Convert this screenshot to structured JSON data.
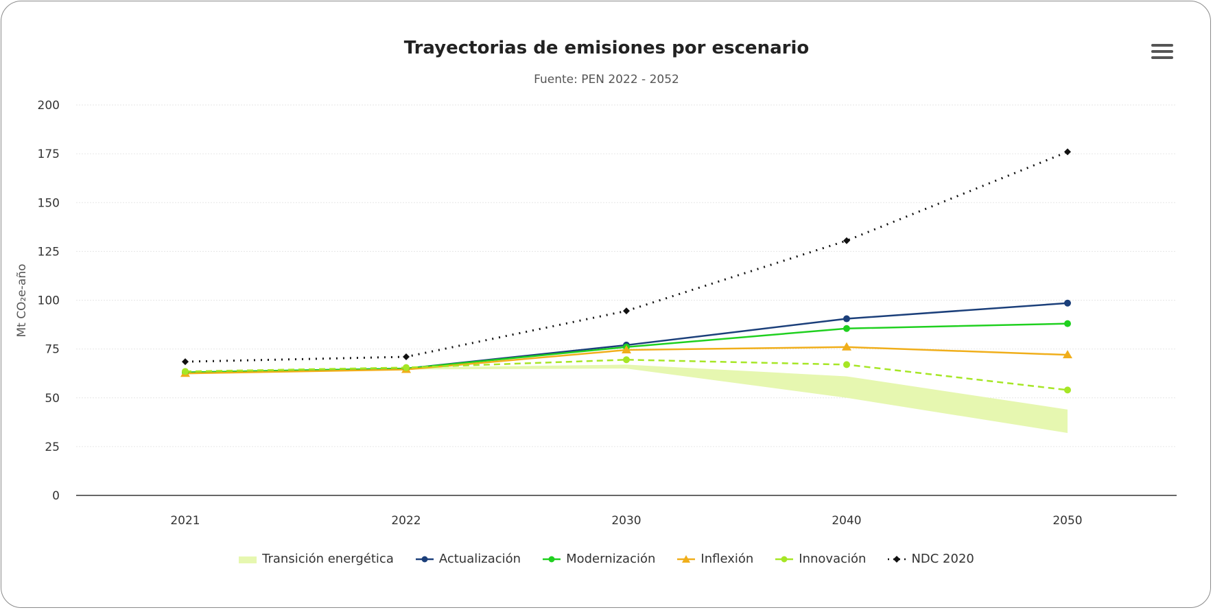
{
  "header": {
    "title": "Trayectorias de emisiones por escenario",
    "subtitle": "Fuente: PEN 2022 - 2052",
    "menu_icon": "hamburger-menu-icon"
  },
  "chart_data": {
    "type": "line",
    "title": "Trayectorias de emisiones por escenario",
    "subtitle": "Fuente: PEN 2022 - 2052",
    "xlabel": "",
    "ylabel": "Mt CO₂e-año",
    "categories": [
      "2021",
      "2022",
      "2030",
      "2040",
      "2050"
    ],
    "ylim": [
      0,
      200
    ],
    "yticks": [
      0,
      25,
      50,
      75,
      100,
      125,
      150,
      175,
      200
    ],
    "grid": true,
    "legend_position": "bottom",
    "range_series": {
      "name": "Transición energética",
      "color": "#e6f7b0",
      "low": [
        62,
        64.5,
        65,
        50,
        32
      ],
      "high": [
        63,
        65.5,
        67,
        61,
        44
      ]
    },
    "series": [
      {
        "name": "Actualización",
        "color": "#1b3f7a",
        "marker": "circle",
        "dash": "solid",
        "values": [
          63,
          65,
          77,
          90.5,
          98.5
        ]
      },
      {
        "name": "Modernización",
        "color": "#1fd01f",
        "marker": "circle",
        "dash": "solid",
        "values": [
          63,
          65,
          76,
          85.5,
          88
        ]
      },
      {
        "name": "Inflexión",
        "color": "#f0ae1a",
        "marker": "triangle",
        "dash": "solid",
        "values": [
          62.5,
          64.5,
          74.5,
          76,
          72
        ]
      },
      {
        "name": "Innovación",
        "color": "#a6e625",
        "marker": "circle",
        "dash": "dashed",
        "values": [
          63.5,
          65.5,
          69.5,
          67,
          54
        ]
      },
      {
        "name": "NDC 2020",
        "color": "#111111",
        "marker": "diamond",
        "dash": "dotted",
        "values": [
          68.5,
          71,
          94.5,
          130.5,
          176
        ]
      }
    ]
  }
}
